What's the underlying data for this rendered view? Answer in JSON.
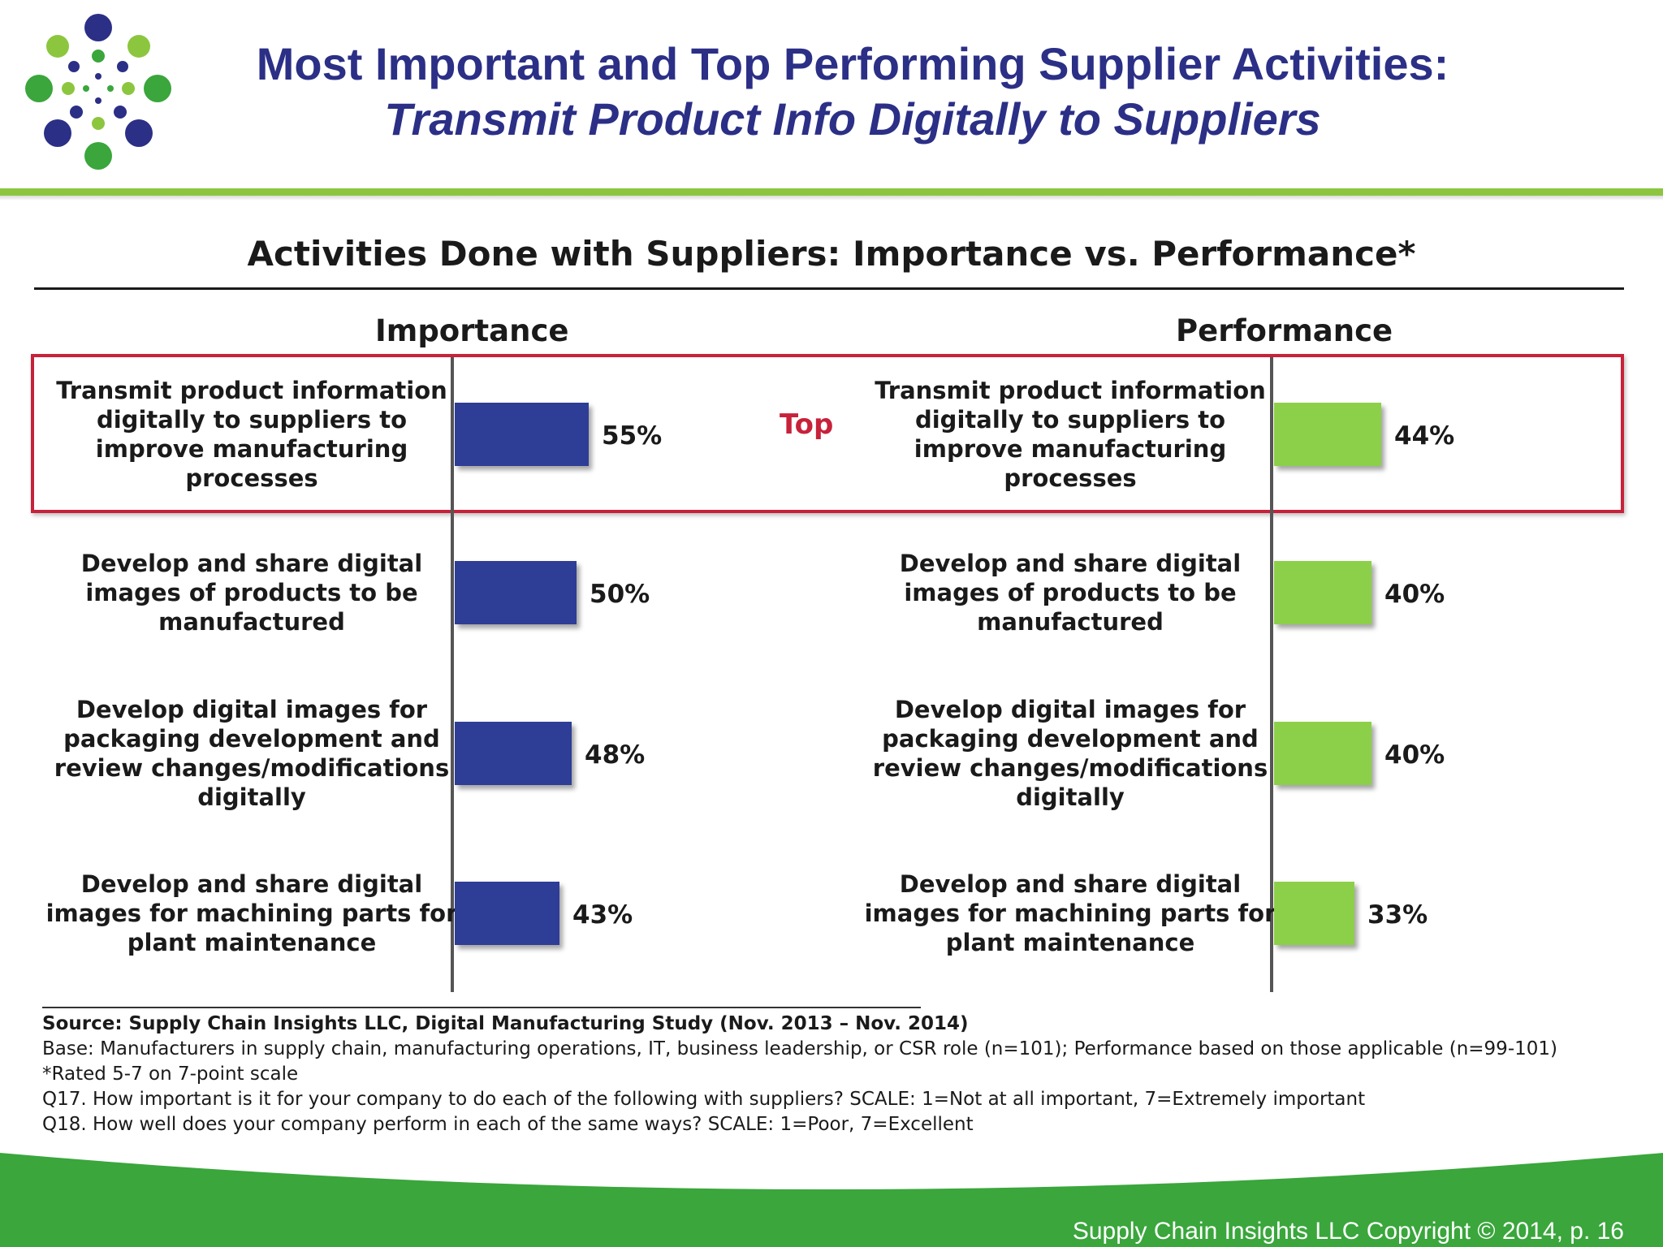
{
  "header": {
    "title_line1": "Most Important and Top Performing Supplier Activities:",
    "title_line2": "Transmit Product Info Digitally to Suppliers"
  },
  "chart_data": {
    "type": "bar",
    "title": "Activities Done with Suppliers: Importance vs. Performance*",
    "highlight_label": "Top",
    "categories": [
      [
        "Transmit product information",
        "digitally to suppliers to",
        "improve manufacturing",
        "processes"
      ],
      [
        "Develop and share digital",
        "images of products to be",
        "manufactured"
      ],
      [
        "Develop digital images for",
        "packaging development and",
        "review changes/modifications",
        "digitally"
      ],
      [
        "Develop and share digital",
        "images for machining parts for",
        "plant maintenance"
      ]
    ],
    "series": [
      {
        "name": "Importance",
        "values": [
          55,
          50,
          48,
          43
        ],
        "labels": [
          "55%",
          "50%",
          "48%",
          "43%"
        ],
        "color": "#2e3c96"
      },
      {
        "name": "Performance",
        "values": [
          44,
          40,
          40,
          33
        ],
        "labels": [
          "44%",
          "40%",
          "40%",
          "33%"
        ],
        "color": "#8cd04a"
      }
    ]
  },
  "notes": {
    "source": "Source:  Supply Chain Insights LLC, Digital Manufacturing Study (Nov. 2013 – Nov. 2014)",
    "base": "Base: Manufacturers in supply chain, manufacturing operations, IT, business leadership, or CSR role (n=101); Performance based on those applicable (n=99-101)",
    "rated": "*Rated 5-7 on 7-point scale",
    "q17": "Q17. How important is it for your company to do each of the following with suppliers? SCALE: 1=Not at all important, 7=Extremely important",
    "q18": "Q18. How well does your company perform in each of the same ways? SCALE: 1=Poor, 7=Excellent"
  },
  "footer": {
    "copyright": "Supply Chain Insights LLC Copyright © 2014, p. 16"
  },
  "colors": {
    "title": "#2b2f86",
    "accent_green": "#8cc63f",
    "footer_green": "#3aa63c",
    "highlight_red": "#c8213a"
  }
}
